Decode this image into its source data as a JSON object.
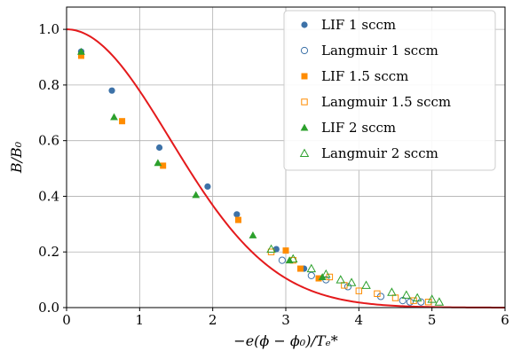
{
  "chart_data": {
    "type": "scatter",
    "xlabel": "−e(ϕ − ϕ₀)/Tₑ*",
    "ylabel": "B/B₀",
    "xlim": [
      0,
      6
    ],
    "ylim": [
      0,
      1.08
    ],
    "x_ticks": [
      "0",
      "1",
      "2",
      "3",
      "4",
      "5",
      "6"
    ],
    "y_ticks": [
      "0.0",
      "0.2",
      "0.4",
      "0.6",
      "0.8",
      "1.0"
    ],
    "x_tick_values": [
      0,
      1,
      2,
      3,
      4,
      5,
      6
    ],
    "y_tick_values": [
      0.0,
      0.2,
      0.4,
      0.6,
      0.8,
      1.0
    ],
    "grid": true,
    "legend_position": "top-right",
    "curve": {
      "type": "line",
      "color": "#e41a1c",
      "function": "exp(-x^2/4)"
    },
    "series": [
      {
        "name": "LIF 1 sccm",
        "marker": "circle",
        "filled": true,
        "color": "#3d72a8",
        "points": [
          [
            0.2,
            0.92
          ],
          [
            0.62,
            0.78
          ],
          [
            1.27,
            0.575
          ],
          [
            1.93,
            0.435
          ],
          [
            2.33,
            0.335
          ],
          [
            2.87,
            0.21
          ],
          [
            3.25,
            0.14
          ]
        ]
      },
      {
        "name": "Langmuir 1 sccm",
        "marker": "circle",
        "filled": false,
        "color": "#3d72a8",
        "points": [
          [
            2.95,
            0.17
          ],
          [
            3.35,
            0.115
          ],
          [
            3.55,
            0.1
          ],
          [
            3.85,
            0.075
          ],
          [
            4.3,
            0.04
          ],
          [
            4.6,
            0.025
          ],
          [
            4.7,
            0.02
          ],
          [
            4.85,
            0.02
          ]
        ]
      },
      {
        "name": "LIF 1.5 sccm",
        "marker": "square",
        "filled": true,
        "color": "#ff8c00",
        "points": [
          [
            0.2,
            0.905
          ],
          [
            0.76,
            0.67
          ],
          [
            1.32,
            0.51
          ],
          [
            2.35,
            0.315
          ],
          [
            3.0,
            0.205
          ],
          [
            3.2,
            0.14
          ],
          [
            3.45,
            0.105
          ]
        ]
      },
      {
        "name": "Langmuir 1.5 sccm",
        "marker": "square",
        "filled": false,
        "color": "#ff8c00",
        "points": [
          [
            2.8,
            0.2
          ],
          [
            3.1,
            0.17
          ],
          [
            3.6,
            0.11
          ],
          [
            3.8,
            0.08
          ],
          [
            4.0,
            0.06
          ],
          [
            4.25,
            0.05
          ],
          [
            4.5,
            0.035
          ],
          [
            4.75,
            0.025
          ],
          [
            4.95,
            0.02
          ]
        ]
      },
      {
        "name": "LIF 2 sccm",
        "marker": "triangle",
        "filled": true,
        "color": "#2ca02c",
        "points": [
          [
            0.2,
            0.92
          ],
          [
            0.65,
            0.685
          ],
          [
            1.25,
            0.52
          ],
          [
            1.77,
            0.405
          ],
          [
            2.55,
            0.26
          ],
          [
            3.05,
            0.17
          ],
          [
            3.5,
            0.11
          ]
        ]
      },
      {
        "name": "Langmuir 2 sccm",
        "marker": "triangle",
        "filled": false,
        "color": "#2ca02c",
        "points": [
          [
            2.8,
            0.21
          ],
          [
            3.1,
            0.175
          ],
          [
            3.35,
            0.14
          ],
          [
            3.55,
            0.12
          ],
          [
            3.75,
            0.1
          ],
          [
            3.9,
            0.09
          ],
          [
            4.1,
            0.08
          ],
          [
            4.45,
            0.055
          ],
          [
            4.65,
            0.045
          ],
          [
            4.8,
            0.035
          ],
          [
            5.0,
            0.03
          ],
          [
            5.1,
            0.02
          ]
        ]
      }
    ]
  }
}
